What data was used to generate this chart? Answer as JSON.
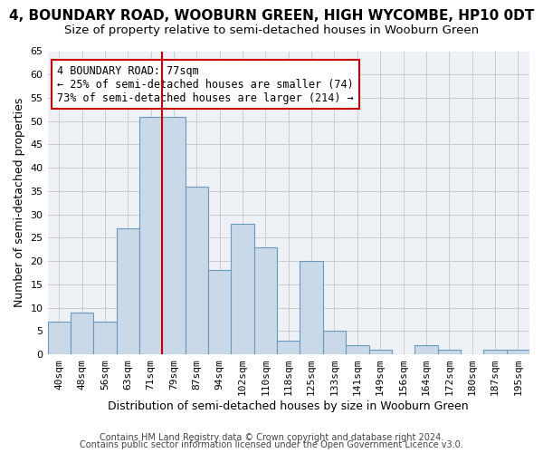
{
  "title": "4, BOUNDARY ROAD, WOOBURN GREEN, HIGH WYCOMBE, HP10 0DT",
  "subtitle": "Size of property relative to semi-detached houses in Wooburn Green",
  "xlabel": "Distribution of semi-detached houses by size in Wooburn Green",
  "ylabel": "Number of semi-detached properties",
  "footnote1": "Contains HM Land Registry data © Crown copyright and database right 2024.",
  "footnote2": "Contains public sector information licensed under the Open Government Licence v3.0.",
  "bar_labels": [
    "40sqm",
    "48sqm",
    "56sqm",
    "63sqm",
    "71sqm",
    "79sqm",
    "87sqm",
    "94sqm",
    "102sqm",
    "110sqm",
    "118sqm",
    "125sqm",
    "133sqm",
    "141sqm",
    "149sqm",
    "156sqm",
    "164sqm",
    "172sqm",
    "180sqm",
    "187sqm",
    "195sqm"
  ],
  "bar_values": [
    7,
    9,
    7,
    27,
    51,
    51,
    36,
    18,
    28,
    23,
    3,
    20,
    5,
    2,
    1,
    0,
    2,
    1,
    0,
    1,
    1
  ],
  "bar_color": "#c9d9e8",
  "bar_edge_color": "#6899be",
  "highlight_bar_index": 4,
  "vline_color": "#cc0000",
  "annotation_text": "4 BOUNDARY ROAD: 77sqm\n← 25% of semi-detached houses are smaller (74)\n73% of semi-detached houses are larger (214) →",
  "annotation_box_color": "#ffffff",
  "annotation_box_edge_color": "#cc0000",
  "ylim": [
    0,
    65
  ],
  "yticks": [
    0,
    5,
    10,
    15,
    20,
    25,
    30,
    35,
    40,
    45,
    50,
    55,
    60,
    65
  ],
  "grid_color": "#cccccc",
  "bg_color": "#eef2f7",
  "title_fontsize": 11,
  "subtitle_fontsize": 9.5,
  "xlabel_fontsize": 9,
  "ylabel_fontsize": 9,
  "tick_fontsize": 8,
  "annotation_fontsize": 8.5,
  "footnote_fontsize": 7
}
